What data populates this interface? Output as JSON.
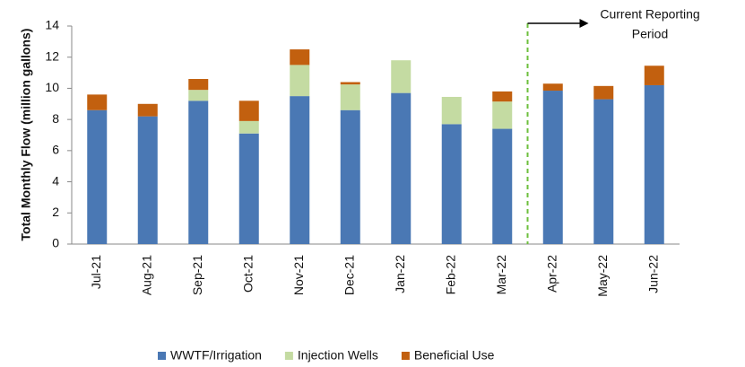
{
  "chart_data": {
    "type": "stacked_bar",
    "y_label": "Total Monthly Flow (million gallons)",
    "annotation": [
      "Current Reporting",
      "Period"
    ],
    "categories": [
      "Jul-21",
      "Aug-21",
      "Sep-21",
      "Oct-21",
      "Nov-21",
      "Dec-21",
      "Jan-22",
      "Feb-22",
      "Mar-22",
      "Apr-22",
      "May-22",
      "Jun-22"
    ],
    "series": [
      {
        "name": "WWTF/Irrigation",
        "color": "#4a78b4",
        "values": [
          8.6,
          8.2,
          9.2,
          7.1,
          9.5,
          8.6,
          9.7,
          7.7,
          7.4,
          9.85,
          9.3,
          10.2
        ]
      },
      {
        "name": "Injection Wells",
        "color": "#c4dba2",
        "values": [
          0,
          0,
          0.7,
          0.8,
          2.0,
          1.65,
          2.1,
          1.75,
          1.75,
          0,
          0,
          0
        ]
      },
      {
        "name": "Beneficial Use",
        "color": "#c2600f",
        "values": [
          1.0,
          0.8,
          0.7,
          1.3,
          1.0,
          0.15,
          0,
          0,
          0.65,
          0.45,
          0.85,
          1.25
        ]
      }
    ],
    "ylim": [
      0,
      14
    ],
    "yticks": [
      0,
      2,
      4,
      6,
      8,
      10,
      12,
      14
    ],
    "grid": false,
    "legend": "bottom"
  }
}
